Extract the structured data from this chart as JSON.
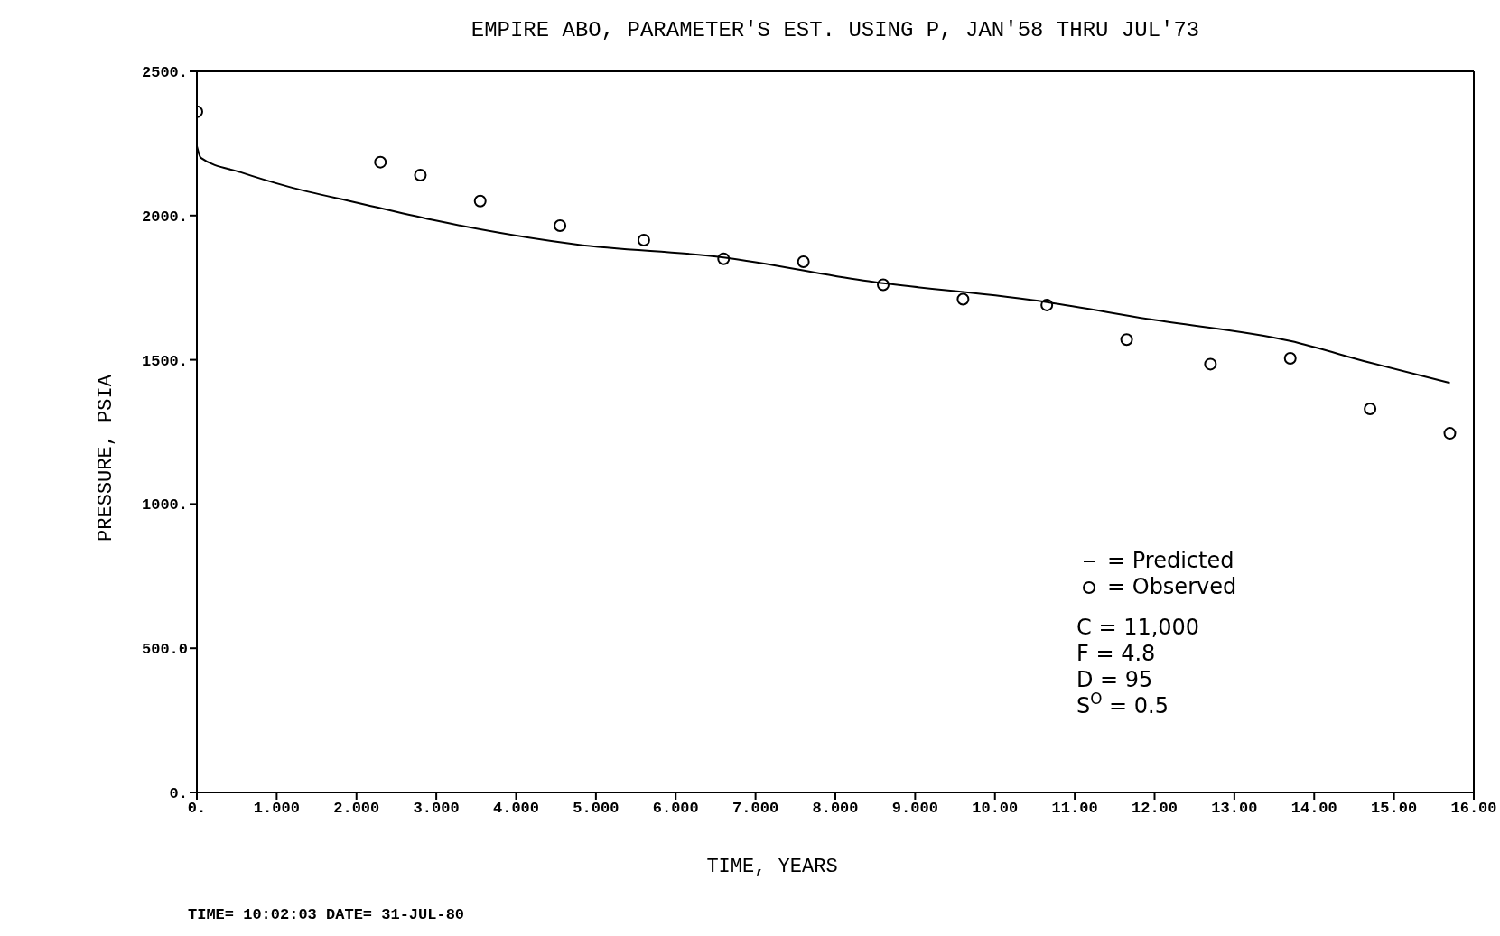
{
  "chart_data": {
    "type": "scatter",
    "title": "EMPIRE ABO, PARAMETER'S EST. USING P, JAN'58 THRU JUL'73",
    "xlabel": "TIME, YEARS",
    "ylabel": "PRESSURE, PSIA",
    "xlim": [
      0,
      16
    ],
    "ylim": [
      0,
      2500
    ],
    "xticks": [
      {
        "value": 0,
        "label": "0."
      },
      {
        "value": 1,
        "label": "1.000"
      },
      {
        "value": 2,
        "label": "2.000"
      },
      {
        "value": 3,
        "label": "3.000"
      },
      {
        "value": 4,
        "label": "4.000"
      },
      {
        "value": 5,
        "label": "5.000"
      },
      {
        "value": 6,
        "label": "6.000"
      },
      {
        "value": 7,
        "label": "7.000"
      },
      {
        "value": 8,
        "label": "8.000"
      },
      {
        "value": 9,
        "label": "9.000"
      },
      {
        "value": 10,
        "label": "10.00"
      },
      {
        "value": 11,
        "label": "11.00"
      },
      {
        "value": 12,
        "label": "12.00"
      },
      {
        "value": 13,
        "label": "13.00"
      },
      {
        "value": 14,
        "label": "14.00"
      },
      {
        "value": 15,
        "label": "15.00"
      },
      {
        "value": 16,
        "label": "16.00"
      }
    ],
    "yticks": [
      {
        "value": 0,
        "label": "0."
      },
      {
        "value": 500,
        "label": "500.0"
      },
      {
        "value": 1000,
        "label": "1000."
      },
      {
        "value": 1500,
        "label": "1500."
      },
      {
        "value": 2000,
        "label": "2000."
      },
      {
        "value": 2500,
        "label": "2500."
      }
    ],
    "grid": false,
    "legend": "bottom right",
    "series": [
      {
        "name": "= Predicted",
        "type": "line",
        "color": "#000000",
        "marker": "none",
        "line_style": "solid",
        "x": [
          0,
          0.05,
          0.55,
          1.15,
          2.0,
          2.95,
          4.75,
          6.6,
          8.35,
          10.65,
          11.95,
          13.7,
          14.7,
          15.7
        ],
        "values": [
          2240,
          2200,
          2150,
          2100,
          2045,
          1985,
          1900,
          1855,
          1775,
          1700,
          1640,
          1565,
          1490,
          1420
        ]
      },
      {
        "name": "= Observed",
        "color": "#000000",
        "marker": "circle",
        "x": [
          0,
          2.3,
          2.8,
          3.55,
          4.55,
          5.6,
          6.6,
          7.6,
          8.6,
          9.6,
          10.65,
          11.65,
          12.7,
          13.7,
          14.7,
          15.7
        ],
        "values": [
          2360,
          2185,
          2140,
          2050,
          1965,
          1915,
          1850,
          1840,
          1760,
          1710,
          1690,
          1570,
          1485,
          1505,
          1330,
          1245
        ]
      }
    ],
    "annotations": [
      "C = 11,000",
      "F = 4.8",
      "D = 95",
      "S$^{O}$ = 0.5",
      "TIME= 10:02:03 DATE= 31-JUL-80"
    ]
  }
}
